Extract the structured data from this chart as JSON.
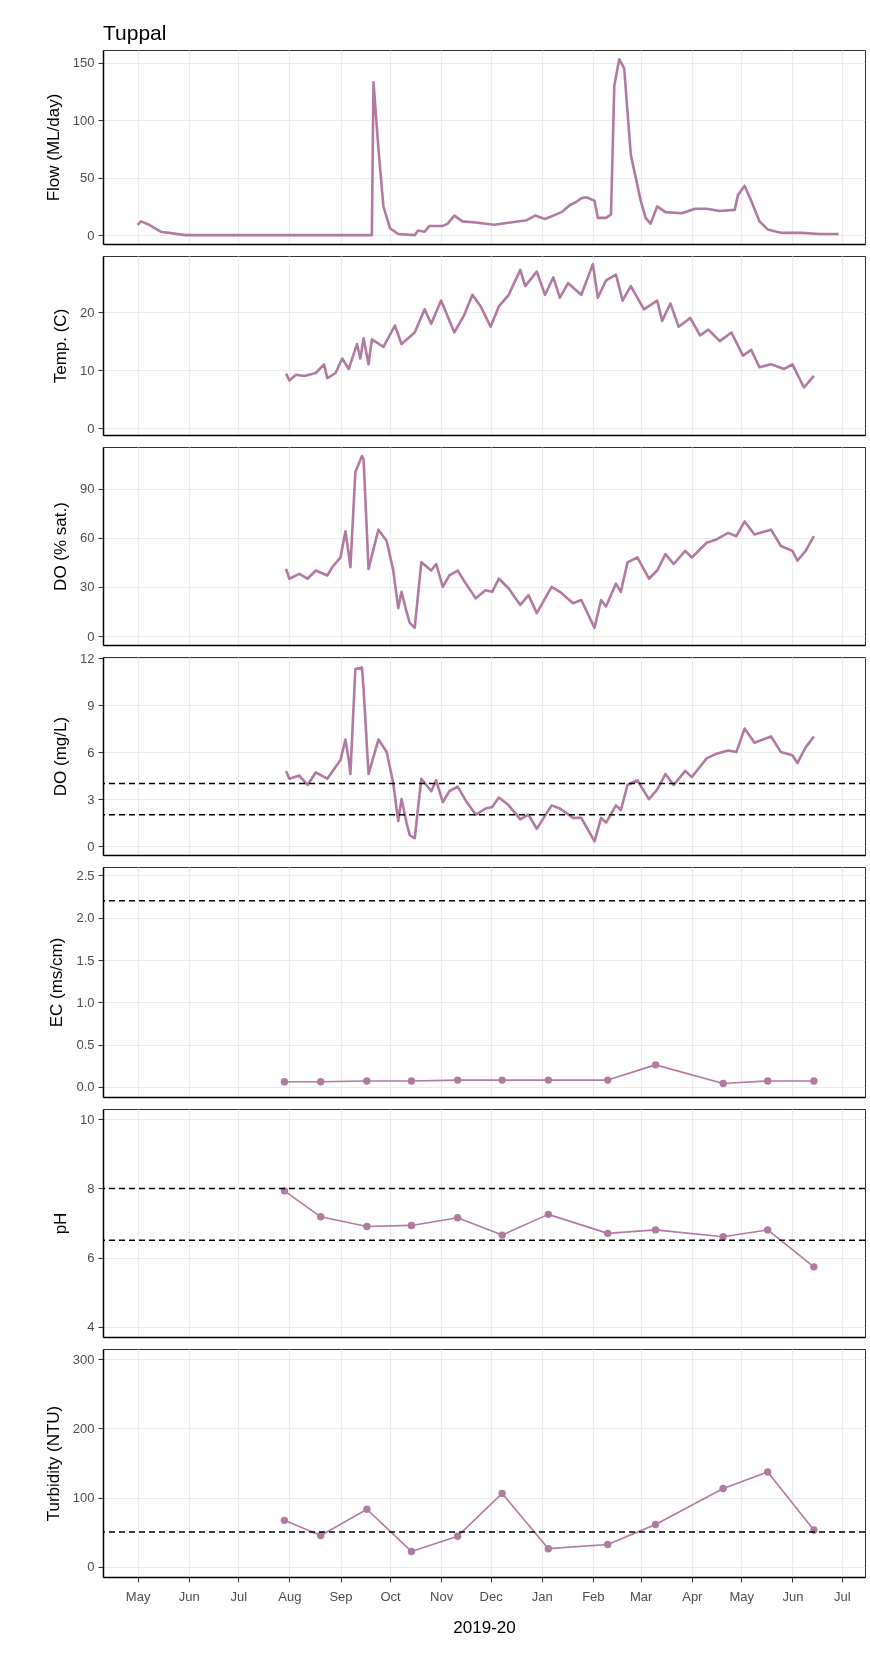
{
  "chart_data": [
    {
      "type": "line",
      "title": "Tuppal",
      "ylabel": "Flow (ML/day)",
      "color": "#b07aa1",
      "grid": true,
      "tick_labels": "y",
      "xlim": [
        "2019-04-10",
        "2020-07-15"
      ],
      "xticks": [
        {
          "value": "2019-05-01",
          "label": null
        },
        {
          "value": "2019-06-01",
          "label": null
        },
        {
          "value": "2019-07-01",
          "label": null
        },
        {
          "value": "2019-08-01",
          "label": null
        },
        {
          "value": "2019-09-01",
          "label": null
        },
        {
          "value": "2019-10-01",
          "label": null
        },
        {
          "value": "2019-11-01",
          "label": null
        },
        {
          "value": "2019-12-01",
          "label": null
        },
        {
          "value": "2020-01-01",
          "label": null
        },
        {
          "value": "2020-02-01",
          "label": null
        },
        {
          "value": "2020-03-01",
          "label": null
        },
        {
          "value": "2020-04-01",
          "label": null
        },
        {
          "value": "2020-05-01",
          "label": null
        },
        {
          "value": "2020-06-01",
          "label": null
        },
        {
          "value": "2020-07-01",
          "label": null
        }
      ],
      "ylim": [
        -7.7,
        161
      ],
      "yticks": [
        0,
        50,
        100,
        150
      ],
      "x": [
        "2019-05-01",
        "2019-05-03",
        "2019-05-08",
        "2019-05-15",
        "2019-05-30",
        "2019-09-20",
        "2019-09-21",
        "2019-09-24",
        "2019-09-27",
        "2019-10-01",
        "2019-10-06",
        "2019-10-16",
        "2019-10-18",
        "2019-10-22",
        "2019-10-25",
        "2019-11-02",
        "2019-11-05",
        "2019-11-09",
        "2019-11-14",
        "2019-11-22",
        "2019-12-03",
        "2019-12-13",
        "2019-12-23",
        "2019-12-28",
        "2020-01-03",
        "2020-01-08",
        "2020-01-13",
        "2020-01-18",
        "2020-01-22",
        "2020-01-25",
        "2020-01-28",
        "2020-02-02",
        "2020-02-04",
        "2020-02-09",
        "2020-02-12",
        "2020-02-14",
        "2020-02-17",
        "2020-02-20",
        "2020-02-24",
        "2020-03-01",
        "2020-03-04",
        "2020-03-07",
        "2020-03-11",
        "2020-03-16",
        "2020-03-26",
        "2020-04-03",
        "2020-04-10",
        "2020-04-18",
        "2020-04-27",
        "2020-04-29",
        "2020-05-03",
        "2020-05-07",
        "2020-05-12",
        "2020-05-17",
        "2020-05-25",
        "2020-06-07",
        "2020-06-17",
        "2020-06-29"
      ],
      "values": [
        9,
        12,
        9,
        3,
        0,
        0,
        133,
        75,
        25,
        6,
        1,
        0,
        4,
        3,
        8,
        8,
        10,
        17,
        12,
        11,
        9,
        11,
        13,
        17,
        14,
        17,
        20,
        26,
        29,
        32,
        33,
        30,
        15,
        15,
        18,
        130,
        153,
        145,
        70,
        30,
        15,
        10,
        25,
        20,
        19,
        23,
        23,
        21,
        22,
        35,
        43,
        30,
        12,
        5,
        2,
        2,
        1,
        1
      ]
    },
    {
      "type": "line",
      "ylabel": "Temp. (C)",
      "color": "#b07aa1",
      "grid": true,
      "tick_labels": "y",
      "xlim": [
        "2019-04-10",
        "2020-07-15"
      ],
      "xticks": [
        {
          "value": "2019-05-01",
          "label": null
        },
        {
          "value": "2019-06-01",
          "label": null
        },
        {
          "value": "2019-07-01",
          "label": null
        },
        {
          "value": "2019-08-01",
          "label": null
        },
        {
          "value": "2019-09-01",
          "label": null
        },
        {
          "value": "2019-10-01",
          "label": null
        },
        {
          "value": "2019-11-01",
          "label": null
        },
        {
          "value": "2019-12-01",
          "label": null
        },
        {
          "value": "2020-01-01",
          "label": null
        },
        {
          "value": "2020-02-01",
          "label": null
        },
        {
          "value": "2020-03-01",
          "label": null
        },
        {
          "value": "2020-04-01",
          "label": null
        },
        {
          "value": "2020-05-01",
          "label": null
        },
        {
          "value": "2020-06-01",
          "label": null
        },
        {
          "value": "2020-07-01",
          "label": null
        }
      ],
      "ylim": [
        -1.2,
        29.7
      ],
      "yticks": [
        0,
        10,
        20
      ],
      "x": [
        "2019-07-30",
        "2019-08-01",
        "2019-08-05",
        "2019-08-10",
        "2019-08-17",
        "2019-08-22",
        "2019-08-24",
        "2019-08-29",
        "2019-09-02",
        "2019-09-06",
        "2019-09-11",
        "2019-09-13",
        "2019-09-15",
        "2019-09-18",
        "2019-09-20",
        "2019-09-27",
        "2019-10-04",
        "2019-10-08",
        "2019-10-16",
        "2019-10-22",
        "2019-10-26",
        "2019-11-01",
        "2019-11-09",
        "2019-11-15",
        "2019-11-20",
        "2019-11-25",
        "2019-12-01",
        "2019-12-06",
        "2019-12-12",
        "2019-12-19",
        "2019-12-22",
        "2019-12-29",
        "2020-01-03",
        "2020-01-08",
        "2020-01-12",
        "2020-01-17",
        "2020-01-25",
        "2020-02-01",
        "2020-02-04",
        "2020-02-09",
        "2020-02-15",
        "2020-02-19",
        "2020-02-24",
        "2020-03-03",
        "2020-03-11",
        "2020-03-14",
        "2020-03-19",
        "2020-03-24",
        "2020-03-31",
        "2020-04-06",
        "2020-04-11",
        "2020-04-18",
        "2020-04-25",
        "2020-05-02",
        "2020-05-07",
        "2020-05-12",
        "2020-05-19",
        "2020-05-27",
        "2020-06-01",
        "2020-06-08",
        "2020-06-11",
        "2020-06-14"
      ],
      "values": [
        9.4,
        8.2,
        9.2,
        9,
        9.5,
        11,
        8.6,
        9.5,
        12,
        10.2,
        14.5,
        12,
        15.5,
        11,
        15.3,
        14,
        17.7,
        14.5,
        16.5,
        20.5,
        18,
        22,
        16.5,
        19.5,
        23,
        21,
        17.5,
        21,
        23,
        27.3,
        24.5,
        27,
        23,
        26,
        22.5,
        25,
        23,
        28.3,
        22.5,
        25.5,
        26.5,
        22,
        24.5,
        20.5,
        22,
        18.5,
        21.5,
        17.5,
        19,
        16,
        17,
        15,
        16.5,
        12.5,
        13.5,
        10.5,
        11,
        10.2,
        11,
        7,
        8,
        9
      ]
    },
    {
      "type": "line",
      "ylabel": "DO (% sat.)",
      "color": "#b07aa1",
      "grid": true,
      "tick_labels": "y",
      "xlim": [
        "2019-04-10",
        "2020-07-15"
      ],
      "xticks": [
        {
          "value": "2019-05-01",
          "label": null
        },
        {
          "value": "2019-06-01",
          "label": null
        },
        {
          "value": "2019-07-01",
          "label": null
        },
        {
          "value": "2019-08-01",
          "label": null
        },
        {
          "value": "2019-09-01",
          "label": null
        },
        {
          "value": "2019-10-01",
          "label": null
        },
        {
          "value": "2019-11-01",
          "label": null
        },
        {
          "value": "2019-12-01",
          "label": null
        },
        {
          "value": "2020-01-01",
          "label": null
        },
        {
          "value": "2020-02-01",
          "label": null
        },
        {
          "value": "2020-03-01",
          "label": null
        },
        {
          "value": "2020-04-01",
          "label": null
        },
        {
          "value": "2020-05-01",
          "label": null
        },
        {
          "value": "2020-06-01",
          "label": null
        },
        {
          "value": "2020-07-01",
          "label": null
        }
      ],
      "ylim": [
        -5.5,
        115.5
      ],
      "yticks": [
        0,
        30,
        60,
        90
      ],
      "x": [
        "2019-07-30",
        "2019-08-01",
        "2019-08-07",
        "2019-08-12",
        "2019-08-17",
        "2019-08-24",
        "2019-08-27",
        "2019-09-01",
        "2019-09-04",
        "2019-09-06",
        "2019-09-07",
        "2019-09-10",
        "2019-09-14",
        "2019-09-15",
        "2019-09-18",
        "2019-09-24",
        "2019-09-29",
        "2019-10-03",
        "2019-10-06",
        "2019-10-08",
        "2019-10-11",
        "2019-10-13",
        "2019-10-16",
        "2019-10-20",
        "2019-10-26",
        "2019-10-29",
        "2019-11-02",
        "2019-11-06",
        "2019-11-11",
        "2019-11-16",
        "2019-11-22",
        "2019-11-28",
        "2019-12-02",
        "2019-12-06",
        "2019-12-12",
        "2019-12-19",
        "2019-12-24",
        "2019-12-29",
        "2020-01-07",
        "2020-01-12",
        "2020-01-20",
        "2020-01-25",
        "2020-02-02",
        "2020-02-06",
        "2020-02-09",
        "2020-02-15",
        "2020-02-18",
        "2020-02-22",
        "2020-02-28",
        "2020-03-06",
        "2020-03-11",
        "2020-03-16",
        "2020-03-21",
        "2020-03-28",
        "2020-04-01",
        "2020-04-10",
        "2020-04-16",
        "2020-04-23",
        "2020-04-28",
        "2020-05-03",
        "2020-05-09",
        "2020-05-19",
        "2020-05-25",
        "2020-06-01",
        "2020-06-04",
        "2020-06-09",
        "2020-06-14"
      ],
      "values": [
        41,
        35,
        38,
        35,
        40,
        37,
        42,
        48,
        64,
        50,
        42,
        100,
        110,
        108,
        41,
        65,
        58,
        40,
        17,
        27,
        15,
        8,
        5,
        45,
        40,
        44,
        30,
        37,
        40,
        32,
        23,
        28,
        27,
        35,
        29,
        19,
        25,
        14,
        30,
        27,
        20,
        22,
        5,
        22,
        18,
        32,
        27,
        45,
        48,
        35,
        40,
        50,
        44,
        52,
        48,
        57,
        59,
        63,
        61,
        70,
        62,
        65,
        55,
        52,
        46,
        52,
        61
      ]
    },
    {
      "type": "line",
      "ylabel": "DO (mg/L)",
      "color": "#b07aa1",
      "grid": true,
      "tick_labels": "y",
      "xlim": [
        "2019-04-10",
        "2020-07-15"
      ],
      "xticks": [
        {
          "value": "2019-05-01",
          "label": null
        },
        {
          "value": "2019-06-01",
          "label": null
        },
        {
          "value": "2019-07-01",
          "label": null
        },
        {
          "value": "2019-08-01",
          "label": null
        },
        {
          "value": "2019-09-01",
          "label": null
        },
        {
          "value": "2019-10-01",
          "label": null
        },
        {
          "value": "2019-11-01",
          "label": null
        },
        {
          "value": "2019-12-01",
          "label": null
        },
        {
          "value": "2020-01-01",
          "label": null
        },
        {
          "value": "2020-02-01",
          "label": null
        },
        {
          "value": "2020-03-01",
          "label": null
        },
        {
          "value": "2020-04-01",
          "label": null
        },
        {
          "value": "2020-05-01",
          "label": null
        },
        {
          "value": "2020-06-01",
          "label": null
        },
        {
          "value": "2020-07-01",
          "label": null
        }
      ],
      "ylim": [
        -0.57,
        12.07
      ],
      "yticks": [
        0,
        3,
        6,
        9,
        12
      ],
      "ref_lines": [
        {
          "axis": "y",
          "value": 4,
          "line_style": "dashed"
        },
        {
          "axis": "y",
          "value": 2,
          "line_style": "dashed"
        }
      ],
      "x": [
        "2019-07-30",
        "2019-08-01",
        "2019-08-07",
        "2019-08-12",
        "2019-08-17",
        "2019-08-24",
        "2019-09-01",
        "2019-09-04",
        "2019-09-06",
        "2019-09-07",
        "2019-09-10",
        "2019-09-14",
        "2019-09-15",
        "2019-09-18",
        "2019-09-24",
        "2019-09-29",
        "2019-10-03",
        "2019-10-06",
        "2019-10-08",
        "2019-10-11",
        "2019-10-13",
        "2019-10-16",
        "2019-10-20",
        "2019-10-26",
        "2019-10-29",
        "2019-11-02",
        "2019-11-06",
        "2019-11-11",
        "2019-11-16",
        "2019-11-22",
        "2019-11-28",
        "2019-12-02",
        "2019-12-06",
        "2019-12-12",
        "2019-12-19",
        "2019-12-24",
        "2019-12-29",
        "2020-01-07",
        "2020-01-12",
        "2020-01-20",
        "2020-01-25",
        "2020-02-02",
        "2020-02-06",
        "2020-02-09",
        "2020-02-15",
        "2020-02-18",
        "2020-02-22",
        "2020-02-28",
        "2020-03-06",
        "2020-03-11",
        "2020-03-16",
        "2020-03-21",
        "2020-03-28",
        "2020-04-01",
        "2020-04-10",
        "2020-04-16",
        "2020-04-23",
        "2020-04-28",
        "2020-05-03",
        "2020-05-09",
        "2020-05-19",
        "2020-05-25",
        "2020-06-01",
        "2020-06-04",
        "2020-06-09",
        "2020-06-14"
      ],
      "values": [
        4.8,
        4.3,
        4.5,
        3.9,
        4.7,
        4.3,
        5.5,
        6.8,
        5.5,
        4.6,
        11.3,
        11.4,
        10,
        4.6,
        6.8,
        6,
        4,
        1.6,
        3,
        1.5,
        0.7,
        0.5,
        4.3,
        3.5,
        4.2,
        2.8,
        3.5,
        3.8,
        2.9,
        2,
        2.4,
        2.5,
        3.1,
        2.6,
        1.7,
        2,
        1.1,
        2.6,
        2.4,
        1.8,
        1.8,
        0.3,
        1.8,
        1.5,
        2.6,
        2.3,
        3.9,
        4.2,
        3,
        3.6,
        4.6,
        3.9,
        4.8,
        4.4,
        5.6,
        5.9,
        6.1,
        6,
        7.5,
        6.6,
        7,
        6,
        5.8,
        5.3,
        6.3,
        7
      ]
    },
    {
      "type": "line",
      "ylabel": "EC (ms/cm)",
      "color": "#b07aa1",
      "marker": "circle",
      "grid": true,
      "tick_labels": "y",
      "xlim": [
        "2019-04-10",
        "2020-07-15"
      ],
      "xticks": [
        {
          "value": "2019-05-01",
          "label": null
        },
        {
          "value": "2019-06-01",
          "label": null
        },
        {
          "value": "2019-07-01",
          "label": null
        },
        {
          "value": "2019-08-01",
          "label": null
        },
        {
          "value": "2019-09-01",
          "label": null
        },
        {
          "value": "2019-10-01",
          "label": null
        },
        {
          "value": "2019-11-01",
          "label": null
        },
        {
          "value": "2019-12-01",
          "label": null
        },
        {
          "value": "2020-01-01",
          "label": null
        },
        {
          "value": "2020-02-01",
          "label": null
        },
        {
          "value": "2020-03-01",
          "label": null
        },
        {
          "value": "2020-04-01",
          "label": null
        },
        {
          "value": "2020-05-01",
          "label": null
        },
        {
          "value": "2020-06-01",
          "label": null
        },
        {
          "value": "2020-07-01",
          "label": null
        }
      ],
      "ylim": [
        -0.12,
        2.6
      ],
      "yticks": [
        {
          "value": 0,
          "label": "0.0"
        },
        0.5,
        {
          "value": 1,
          "label": "1.0"
        },
        1.5,
        {
          "value": 2,
          "label": "2.0"
        },
        2.5
      ],
      "ref_lines": [
        {
          "axis": "y",
          "value": 2.2,
          "line_style": "dashed"
        }
      ],
      "x": [
        "2019-07-29",
        "2019-08-20",
        "2019-09-17",
        "2019-10-14",
        "2019-11-11",
        "2019-12-08",
        "2020-01-05",
        "2020-02-10",
        "2020-03-10",
        "2020-04-20",
        "2020-05-17",
        "2020-06-14"
      ],
      "values": [
        0.06,
        0.06,
        0.07,
        0.07,
        0.08,
        0.08,
        0.08,
        0.08,
        0.26,
        0.04,
        0.07,
        0.07
      ]
    },
    {
      "type": "line",
      "ylabel": "pH",
      "color": "#b07aa1",
      "marker": "circle",
      "grid": true,
      "tick_labels": "y",
      "xlim": [
        "2019-04-10",
        "2020-07-15"
      ],
      "xticks": [
        {
          "value": "2019-05-01",
          "label": null
        },
        {
          "value": "2019-06-01",
          "label": null
        },
        {
          "value": "2019-07-01",
          "label": null
        },
        {
          "value": "2019-08-01",
          "label": null
        },
        {
          "value": "2019-09-01",
          "label": null
        },
        {
          "value": "2019-10-01",
          "label": null
        },
        {
          "value": "2019-11-01",
          "label": null
        },
        {
          "value": "2019-12-01",
          "label": null
        },
        {
          "value": "2020-01-01",
          "label": null
        },
        {
          "value": "2020-02-01",
          "label": null
        },
        {
          "value": "2020-03-01",
          "label": null
        },
        {
          "value": "2020-04-01",
          "label": null
        },
        {
          "value": "2020-05-01",
          "label": null
        },
        {
          "value": "2020-06-01",
          "label": null
        },
        {
          "value": "2020-07-01",
          "label": null
        }
      ],
      "ylim": [
        3.7,
        10.3
      ],
      "yticks": [
        4,
        6,
        8,
        10
      ],
      "ref_lines": [
        {
          "axis": "y",
          "value": 8,
          "line_style": "dashed"
        },
        {
          "axis": "y",
          "value": 6.5,
          "line_style": "dashed"
        }
      ],
      "x": [
        "2019-07-29",
        "2019-08-20",
        "2019-09-17",
        "2019-10-14",
        "2019-11-11",
        "2019-12-08",
        "2020-01-05",
        "2020-02-10",
        "2020-03-10",
        "2020-04-20",
        "2020-05-17",
        "2020-06-14"
      ],
      "values": [
        7.93,
        7.18,
        6.9,
        6.93,
        7.15,
        6.65,
        7.25,
        6.7,
        6.8,
        6.6,
        6.8,
        5.73
      ]
    },
    {
      "type": "line",
      "ylabel": "Turbidity (NTU)",
      "xlabel": "2019-20",
      "color": "#b07aa1",
      "marker": "circle",
      "grid": true,
      "xlim": [
        "2019-04-10",
        "2020-07-15"
      ],
      "xticks": [
        {
          "value": "2019-05-01",
          "label": "May"
        },
        {
          "value": "2019-06-01",
          "label": "Jun"
        },
        {
          "value": "2019-07-01",
          "label": "Jul"
        },
        {
          "value": "2019-08-01",
          "label": "Aug"
        },
        {
          "value": "2019-09-01",
          "label": "Sep"
        },
        {
          "value": "2019-10-01",
          "label": "Oct"
        },
        {
          "value": "2019-11-01",
          "label": "Nov"
        },
        {
          "value": "2019-12-01",
          "label": "Dec"
        },
        {
          "value": "2020-01-01",
          "label": "Jan"
        },
        {
          "value": "2020-02-01",
          "label": "Feb"
        },
        {
          "value": "2020-03-01",
          "label": "Mar"
        },
        {
          "value": "2020-04-01",
          "label": "Apr"
        },
        {
          "value": "2020-05-01",
          "label": "May"
        },
        {
          "value": "2020-06-01",
          "label": "Jun"
        },
        {
          "value": "2020-07-01",
          "label": "Jul"
        }
      ],
      "ylim": [
        -15,
        315
      ],
      "yticks": [
        0,
        100,
        200,
        300
      ],
      "ref_lines": [
        {
          "axis": "y",
          "value": 50,
          "line_style": "dashed"
        }
      ],
      "x": [
        "2019-07-29",
        "2019-08-20",
        "2019-09-17",
        "2019-10-14",
        "2019-11-11",
        "2019-12-08",
        "2020-01-05",
        "2020-02-10",
        "2020-03-10",
        "2020-04-20",
        "2020-05-17",
        "2020-06-14"
      ],
      "values": [
        67,
        45,
        83,
        22,
        44,
        106,
        26,
        32,
        61,
        113,
        137,
        53
      ]
    }
  ]
}
